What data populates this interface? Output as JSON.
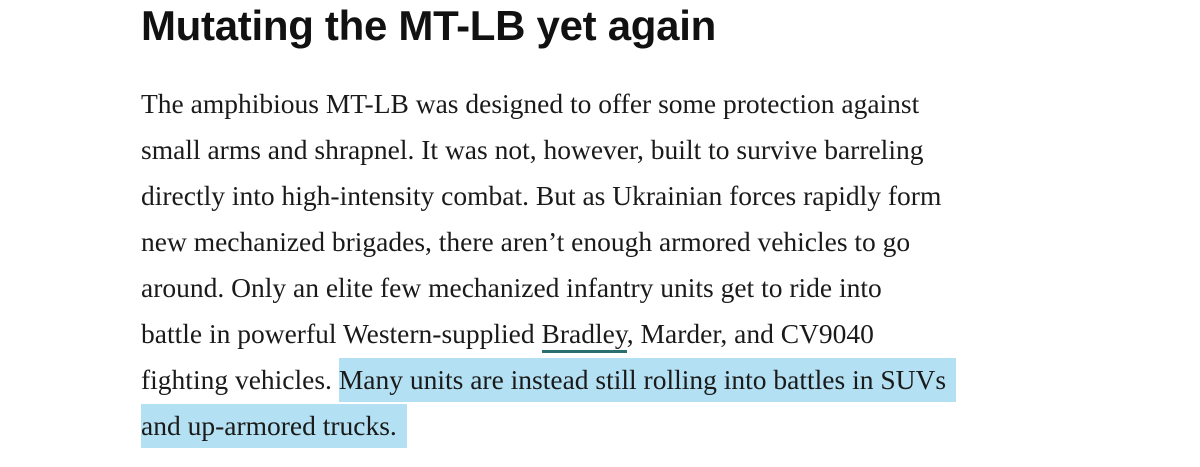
{
  "article": {
    "heading": "Mutating the MT-LB yet again",
    "lines": [
      "The amphibious MT-LB was designed to offer some protection against",
      "small arms and shrapnel. It was not, however, built to survive barreling",
      "directly into high-intensity combat. But as Ukrainian forces rapidly form",
      "new mechanized brigades, there aren’t enough armored vehicles to go",
      "around. Only an elite few mechanized infantry units get to ride into"
    ],
    "line6_before": "battle in powerful Western-supplied ",
    "link_text": "Bradley",
    "line6_after": ", Marder, and CV9040",
    "line7_plain": "fighting vehicles. ",
    "line7_highlight": "Many units are instead still rolling into battles in SUVs",
    "line8_highlight": "and up-armored trucks."
  },
  "colors": {
    "highlight": "#b3e0f2",
    "link_underline": "#2a6e6e"
  }
}
